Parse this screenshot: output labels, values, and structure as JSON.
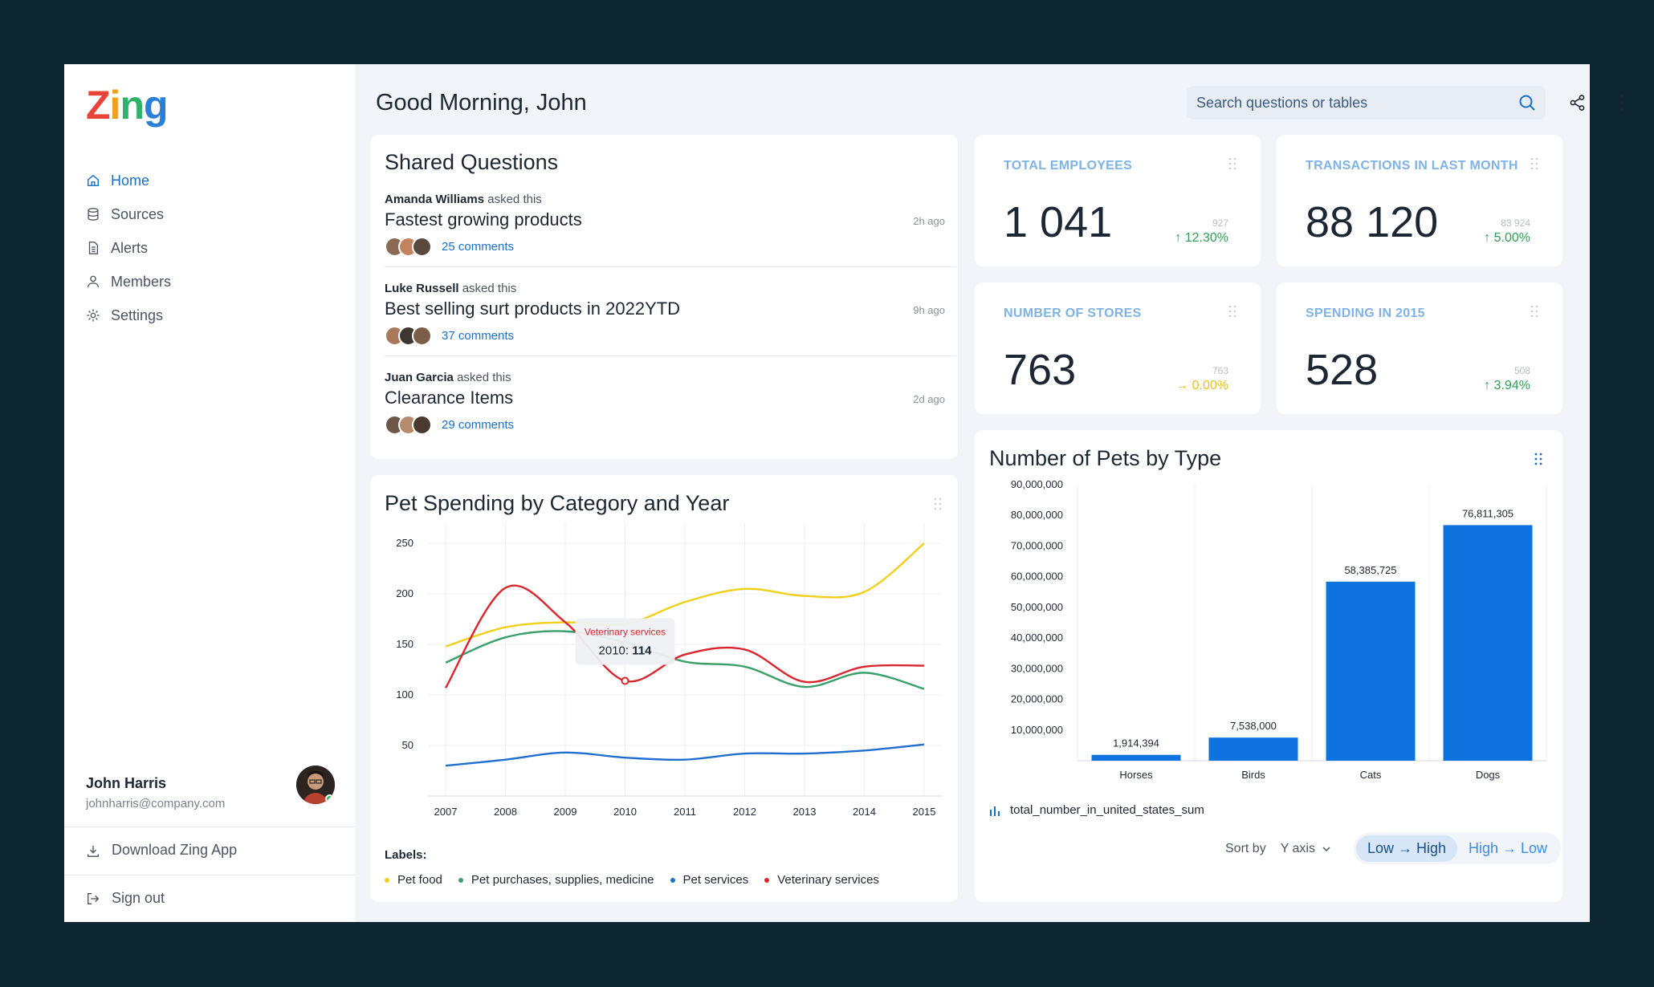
{
  "app": {
    "logo_text": "Zing"
  },
  "sidebar": {
    "items": [
      {
        "label": "Home",
        "icon": "home-icon",
        "active": true
      },
      {
        "label": "Sources",
        "icon": "database-icon"
      },
      {
        "label": "Alerts",
        "icon": "document-icon"
      },
      {
        "label": "Members",
        "icon": "user-icon"
      },
      {
        "label": "Settings",
        "icon": "gear-icon"
      }
    ],
    "user": {
      "name": "John Harris",
      "email": "johnharris@company.com"
    },
    "download_label": "Download Zing App",
    "signout_label": "Sign out"
  },
  "header": {
    "greeting": "Good Morning, John",
    "search_placeholder": "Search questions or tables"
  },
  "shared_questions": {
    "title": "Shared Questions",
    "asked_label": "asked this",
    "items": [
      {
        "asker": "Amanda Williams",
        "title": "Fastest growing products",
        "time": "2h ago",
        "comments": "25 comments"
      },
      {
        "asker": "Luke Russell",
        "title": "Best selling surt products in 2022YTD",
        "time": "9h ago",
        "comments": "37 comments"
      },
      {
        "asker": "Juan Garcia",
        "title": "Clearance Items",
        "time": "2d ago",
        "comments": "29 comments"
      }
    ]
  },
  "kpis": [
    {
      "label": "TOTAL EMPLOYEES",
      "value": "1 041",
      "prev": "927",
      "change": "12.30%",
      "direction": "up",
      "color": "#2e9e53"
    },
    {
      "label": "TRANSACTIONS IN LAST MONTH",
      "value": "88 120",
      "prev": "83 924",
      "change": "5.00%",
      "direction": "up",
      "color": "#2e9e53"
    },
    {
      "label": "NUMBER OF STORES",
      "value": "763",
      "prev": "763",
      "change": "0.00%",
      "direction": "flat",
      "color": "#e8c21a"
    },
    {
      "label": "SPENDING IN 2015",
      "value": "528",
      "prev": "508",
      "change": "3.94%",
      "direction": "up",
      "color": "#2e9e53"
    }
  ],
  "line_chart": {
    "legend_title": "Labels:",
    "tooltip": {
      "series": "Veterinary services",
      "label": "2010:",
      "value": "114"
    }
  },
  "bar_chart": {
    "series_label": "total_number_in_united_states_sum",
    "sort_label": "Sort by",
    "sort_value": "Y axis",
    "low_high": "Low → High",
    "high_low": "High → Low"
  },
  "chart_data": [
    {
      "type": "line",
      "title": "Pet Spending by Category and Year",
      "x": [
        2007,
        2008,
        2009,
        2010,
        2011,
        2012,
        2013,
        2014,
        2015
      ],
      "ylim": [
        0,
        270
      ],
      "yticks": [
        50,
        100,
        150,
        200,
        250
      ],
      "grid": true,
      "legend": "bottom",
      "series": [
        {
          "name": "Pet food",
          "color": "#f2cf1a",
          "values": [
            148,
            167,
            172,
            170,
            192,
            205,
            198,
            202,
            250
          ]
        },
        {
          "name": "Pet purchases, supplies, medicine",
          "color": "#3aa06a",
          "values": [
            132,
            157,
            163,
            152,
            133,
            128,
            108,
            122,
            106
          ]
        },
        {
          "name": "Pet services",
          "color": "#1f6fcf",
          "values": [
            30,
            36,
            43,
            38,
            36,
            42,
            42,
            45,
            51
          ]
        },
        {
          "name": "Veterinary services",
          "color": "#d9262c",
          "values": [
            107,
            206,
            172,
            114,
            140,
            145,
            113,
            128,
            129
          ]
        }
      ]
    },
    {
      "type": "bar",
      "title": "Number of Pets by Type",
      "categories": [
        "Horses",
        "Birds",
        "Cats",
        "Dogs"
      ],
      "values": [
        1914394,
        7538000,
        58385725,
        76811305
      ],
      "value_labels": [
        "1,914,394",
        "7,538,000",
        "58,385,725",
        "76,811,305"
      ],
      "ylim": [
        0,
        90000000
      ],
      "yticks": [
        "10,000,000",
        "20,000,000",
        "30,000,000",
        "40,000,000",
        "50,000,000",
        "60,000,000",
        "70,000,000",
        "80,000,000",
        "90,000,000"
      ],
      "color": "#0e73de",
      "series_name": "total_number_in_united_states_sum"
    }
  ]
}
